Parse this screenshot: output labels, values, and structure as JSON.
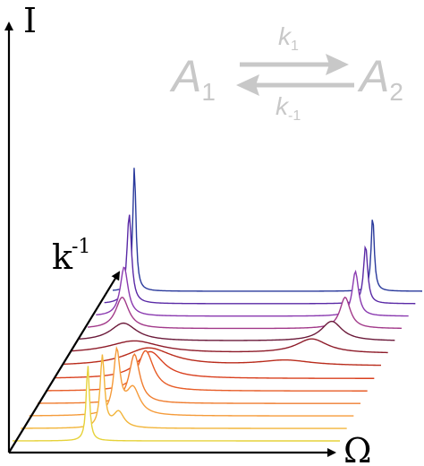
{
  "axes": {
    "intensity_label": "I",
    "frequency_label": "Ω",
    "depth_label_base": "k",
    "depth_label_exp": "-1"
  },
  "reaction": {
    "species_a_base": "A",
    "species_a_sub": "1",
    "species_b_base": "A",
    "species_b_sub": "2",
    "forward_rate_base": "k",
    "forward_rate_sub": "1",
    "backward_rate_base": "k",
    "backward_rate_sub": "-1",
    "color": "#c8c8c8"
  },
  "spectra_stack": {
    "description_colors_front_to_back": [
      "#e6d23a",
      "#f2b53b",
      "#f59b3a",
      "#ef7d30",
      "#e75d28",
      "#d9401f",
      "#b92c1c",
      "#8e1c2a",
      "#6b1a3a",
      "#a23a8a",
      "#8a3ab0",
      "#5a2aa6",
      "#2a3a9c"
    ],
    "traces": [
      {
        "peaks": [
          {
            "pos": 0.23,
            "amp": 85,
            "width": 0.006
          }
        ]
      },
      {
        "peaks": [
          {
            "pos": 0.25,
            "amp": 80,
            "width": 0.008
          },
          {
            "pos": 0.3,
            "amp": 18,
            "width": 0.02
          }
        ]
      },
      {
        "peaks": [
          {
            "pos": 0.27,
            "amp": 70,
            "width": 0.012
          },
          {
            "pos": 0.32,
            "amp": 30,
            "width": 0.025
          }
        ]
      },
      {
        "peaks": [
          {
            "pos": 0.3,
            "amp": 55,
            "width": 0.02
          }
        ]
      },
      {
        "peaks": [
          {
            "pos": 0.31,
            "amp": 45,
            "width": 0.03
          }
        ]
      },
      {
        "peaks": [
          {
            "pos": 0.3,
            "amp": 30,
            "width": 0.05
          }
        ]
      },
      {
        "peaks": [
          {
            "pos": 0.27,
            "amp": 20,
            "width": 0.09
          },
          {
            "pos": 0.7,
            "amp": 6,
            "width": 0.1
          }
        ]
      },
      {
        "peaks": [
          {
            "pos": 0.2,
            "amp": 14,
            "width": 0.1
          },
          {
            "pos": 0.76,
            "amp": 16,
            "width": 0.06
          }
        ]
      },
      {
        "peaks": [
          {
            "pos": 0.14,
            "amp": 20,
            "width": 0.05
          },
          {
            "pos": 0.8,
            "amp": 22,
            "width": 0.04
          }
        ]
      },
      {
        "peaks": [
          {
            "pos": 0.11,
            "amp": 35,
            "width": 0.025
          },
          {
            "pos": 0.82,
            "amp": 35,
            "width": 0.02
          }
        ]
      },
      {
        "peaks": [
          {
            "pos": 0.09,
            "amp": 55,
            "width": 0.015
          },
          {
            "pos": 0.83,
            "amp": 50,
            "width": 0.012
          }
        ]
      },
      {
        "peaks": [
          {
            "pos": 0.08,
            "amp": 100,
            "width": 0.009
          },
          {
            "pos": 0.84,
            "amp": 65,
            "width": 0.008
          }
        ]
      },
      {
        "peaks": [
          {
            "pos": 0.07,
            "amp": 140,
            "width": 0.006
          },
          {
            "pos": 0.84,
            "amp": 85,
            "width": 0.006
          }
        ]
      }
    ]
  }
}
